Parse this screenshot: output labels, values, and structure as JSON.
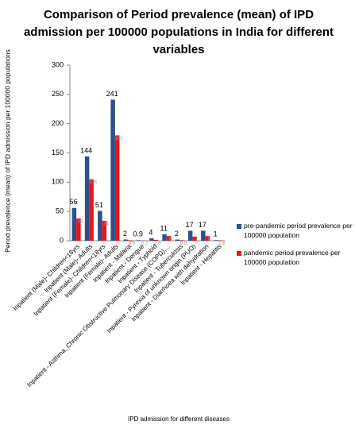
{
  "chart_data": {
    "type": "bar",
    "title": "Comparison of Period prevalence (mean) of IPD admission per 100000 populations in India for different variables",
    "y_label": "Period prevalence (mean) of IPD admission per 100000 populations",
    "x_label": "IPD admission for different diseases",
    "categories": [
      "Inpatient (Male)- Children<18yrs",
      "Inpatient (Male)- Adults",
      "Inpatient (Female)- Children<18yrs",
      "Inpatient (Female)- Adults",
      "Inpatient - Malaria",
      "Inpatient - Dengue",
      "Inpatient - Typhoid",
      "Inpatient - Asthma, Chronic Obstructive Pulmonary Disease (COPD),...",
      "Inpatient - Tuberculosis",
      "Inpatient - Pyrexia of unknown origin (PUO)",
      "Inpatient - Diarrhoea with dehydration",
      "Inpatient - Hepatitis"
    ],
    "series": [
      {
        "name": "pre-pandemic period prevalence per 100000 population",
        "color": "#2e4f8c",
        "values": [
          56,
          144,
          51,
          241,
          2,
          0.9,
          4,
          11,
          2,
          17,
          17,
          1
        ]
      },
      {
        "name": "pandemic period prevalence per 100000 population",
        "color": "#e8161b",
        "values": [
          38,
          105,
          34,
          180,
          0.9,
          0.2,
          1.5,
          8,
          0.9,
          7,
          8,
          0.6
        ]
      }
    ],
    "ylim": [
      0,
      300
    ],
    "yticks": [
      0,
      50,
      100,
      150,
      200,
      250,
      300
    ],
    "legend": "right"
  }
}
